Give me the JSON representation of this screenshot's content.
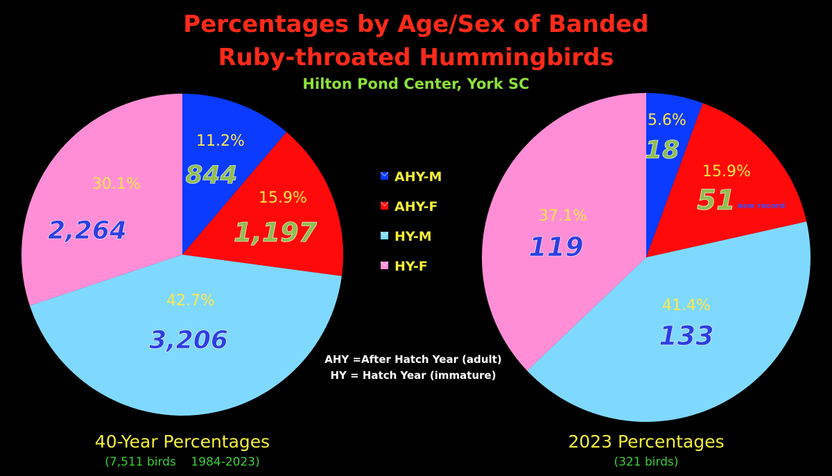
{
  "title_line1": "Percentages by Age/Sex of Banded",
  "title_line2": "Ruby-throated Hummingbirds",
  "subtitle": "Hilton Pond Center, York SC",
  "colors": {
    "title": "#ff2a1a",
    "subtitle": "#8ee03a",
    "caption": "#f4ee3a",
    "caption_sub": "#3ccf3a",
    "pct_label": "#ffe84a",
    "count_green": "#8fbe4e",
    "count_blue": "#2d3fe0",
    "note": "#ffffff"
  },
  "legend": [
    {
      "label": "AHY-M",
      "color": "#0a3bff"
    },
    {
      "label": "AHY-F",
      "color": "#ff0a0a"
    },
    {
      "label": "HY-M",
      "color": "#7fd9ff"
    },
    {
      "label": "HY-F",
      "color": "#ff8ed6"
    }
  ],
  "note_line1": "AHY =After Hatch Year (adult)",
  "note_line2": "HY = Hatch Year (immature)",
  "chart_data": [
    {
      "type": "pie",
      "caption": "40-Year Percentages",
      "caption_sub": "(7,511 birds    1984-2023)",
      "slices": [
        {
          "category": "AHY-M",
          "percent": 11.2,
          "pct_label": "11.2%",
          "count": "844",
          "count_color": "green",
          "color": "#0a3bff"
        },
        {
          "category": "AHY-F",
          "percent": 15.9,
          "pct_label": "15.9%",
          "count": "1,197",
          "count_color": "green",
          "color": "#ff0a0a"
        },
        {
          "category": "HY-M",
          "percent": 42.7,
          "pct_label": "42.7%",
          "count": "3,206",
          "count_color": "blue",
          "color": "#7fd9ff"
        },
        {
          "category": "HY-F",
          "percent": 30.1,
          "pct_label": "30.1%",
          "count": "2,264",
          "count_color": "blue",
          "color": "#ff8ed6"
        }
      ]
    },
    {
      "type": "pie",
      "caption": "2023 Percentages",
      "caption_sub": "(321 birds)",
      "slices": [
        {
          "category": "AHY-M",
          "percent": 5.6,
          "pct_label": "5.6%",
          "count": "18",
          "count_color": "green",
          "color": "#0a3bff"
        },
        {
          "category": "AHY-F",
          "percent": 15.9,
          "pct_label": "15.9%",
          "count": "51",
          "count_color": "green",
          "note": "new record",
          "color": "#ff0a0a"
        },
        {
          "category": "HY-M",
          "percent": 41.4,
          "pct_label": "41.4%",
          "count": "133",
          "count_color": "blue",
          "color": "#7fd9ff"
        },
        {
          "category": "HY-F",
          "percent": 37.1,
          "pct_label": "37.1%",
          "count": "119",
          "count_color": "blue",
          "color": "#ff8ed6"
        }
      ]
    }
  ]
}
